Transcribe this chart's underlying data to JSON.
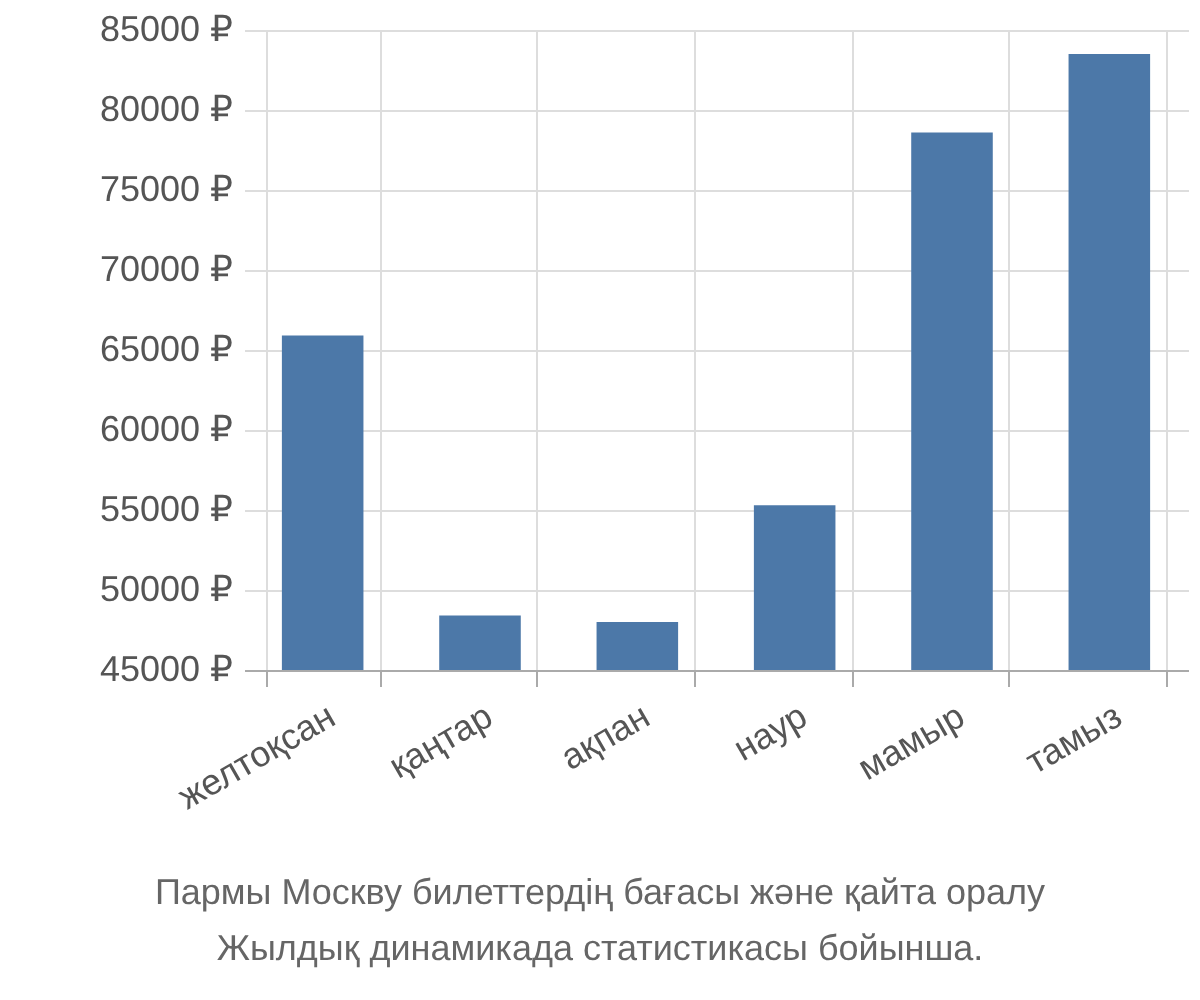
{
  "chart_data": {
    "type": "bar",
    "categories": [
      "желтоқсан",
      "қаңтар",
      "ақпан",
      "наур",
      "мамыр",
      "тамыз"
    ],
    "values": [
      65900,
      48400,
      48000,
      55300,
      78600,
      83500
    ],
    "color": "#4c78a8",
    "ylim": [
      45000,
      85000
    ],
    "yticks": [
      {
        "value": 45000,
        "label": "45000 ₽"
      },
      {
        "value": 50000,
        "label": "50000 ₽"
      },
      {
        "value": 55000,
        "label": "55000 ₽"
      },
      {
        "value": 60000,
        "label": "60000 ₽"
      },
      {
        "value": 65000,
        "label": "65000 ₽"
      },
      {
        "value": 70000,
        "label": "70000 ₽"
      },
      {
        "value": 75000,
        "label": "75000 ₽"
      },
      {
        "value": 80000,
        "label": "80000 ₽"
      },
      {
        "value": 85000,
        "label": "85000 ₽"
      }
    ],
    "grid": true,
    "annotations": [
      "Пармы Москву билеттердің бағасы және қайта оралу",
      "Жылдық динамикада статистикасы бойынша."
    ]
  }
}
